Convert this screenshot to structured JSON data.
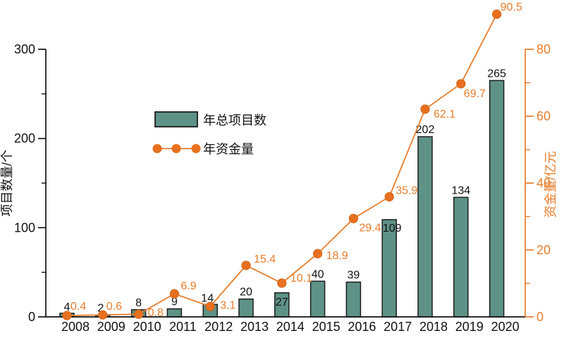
{
  "page": {
    "background": "#ffffff"
  },
  "chart_data": {
    "type": "combo",
    "categories": [
      "2008",
      "2009",
      "2010",
      "2011",
      "2012",
      "2013",
      "2014",
      "2015",
      "2016",
      "2017",
      "2018",
      "2019",
      "2020"
    ],
    "series": [
      {
        "name": "年总项目数",
        "type": "bar",
        "axis": "left",
        "values": [
          4,
          2,
          8,
          9,
          14,
          20,
          27,
          40,
          39,
          109,
          202,
          134,
          265
        ],
        "color": "#5e9286",
        "border_color": "#1c1c1c",
        "data_labels": true,
        "label_color": "#111111"
      },
      {
        "name": "年资金量",
        "type": "line",
        "axis": "right",
        "values": [
          0.4,
          0.6,
          0.8,
          6.9,
          3.1,
          15.4,
          10.1,
          18.9,
          29.4,
          35.9,
          62.1,
          69.7,
          90.5
        ],
        "color": "#e87d2c",
        "marker_color": "#e8701f",
        "data_labels": true,
        "label_color": "#e87d2c"
      }
    ],
    "left_axis": {
      "label": "项目数量/个",
      "min": 0,
      "max": 300,
      "major_ticks": [
        0,
        100,
        200,
        300
      ],
      "minor_ticks": [
        50,
        150,
        250
      ],
      "color": "#111111"
    },
    "right_axis": {
      "label": "资金量/亿元",
      "min": 0,
      "max": 80,
      "major_ticks": [
        0,
        20,
        40,
        60,
        80
      ],
      "minor_ticks": [
        10,
        30,
        50,
        70
      ],
      "color": "#e87d2c"
    },
    "legend": {
      "items": [
        "年总项目数",
        "年资金量"
      ],
      "position": "center-left"
    },
    "grid": false,
    "title": "",
    "background": "#ffffff"
  }
}
